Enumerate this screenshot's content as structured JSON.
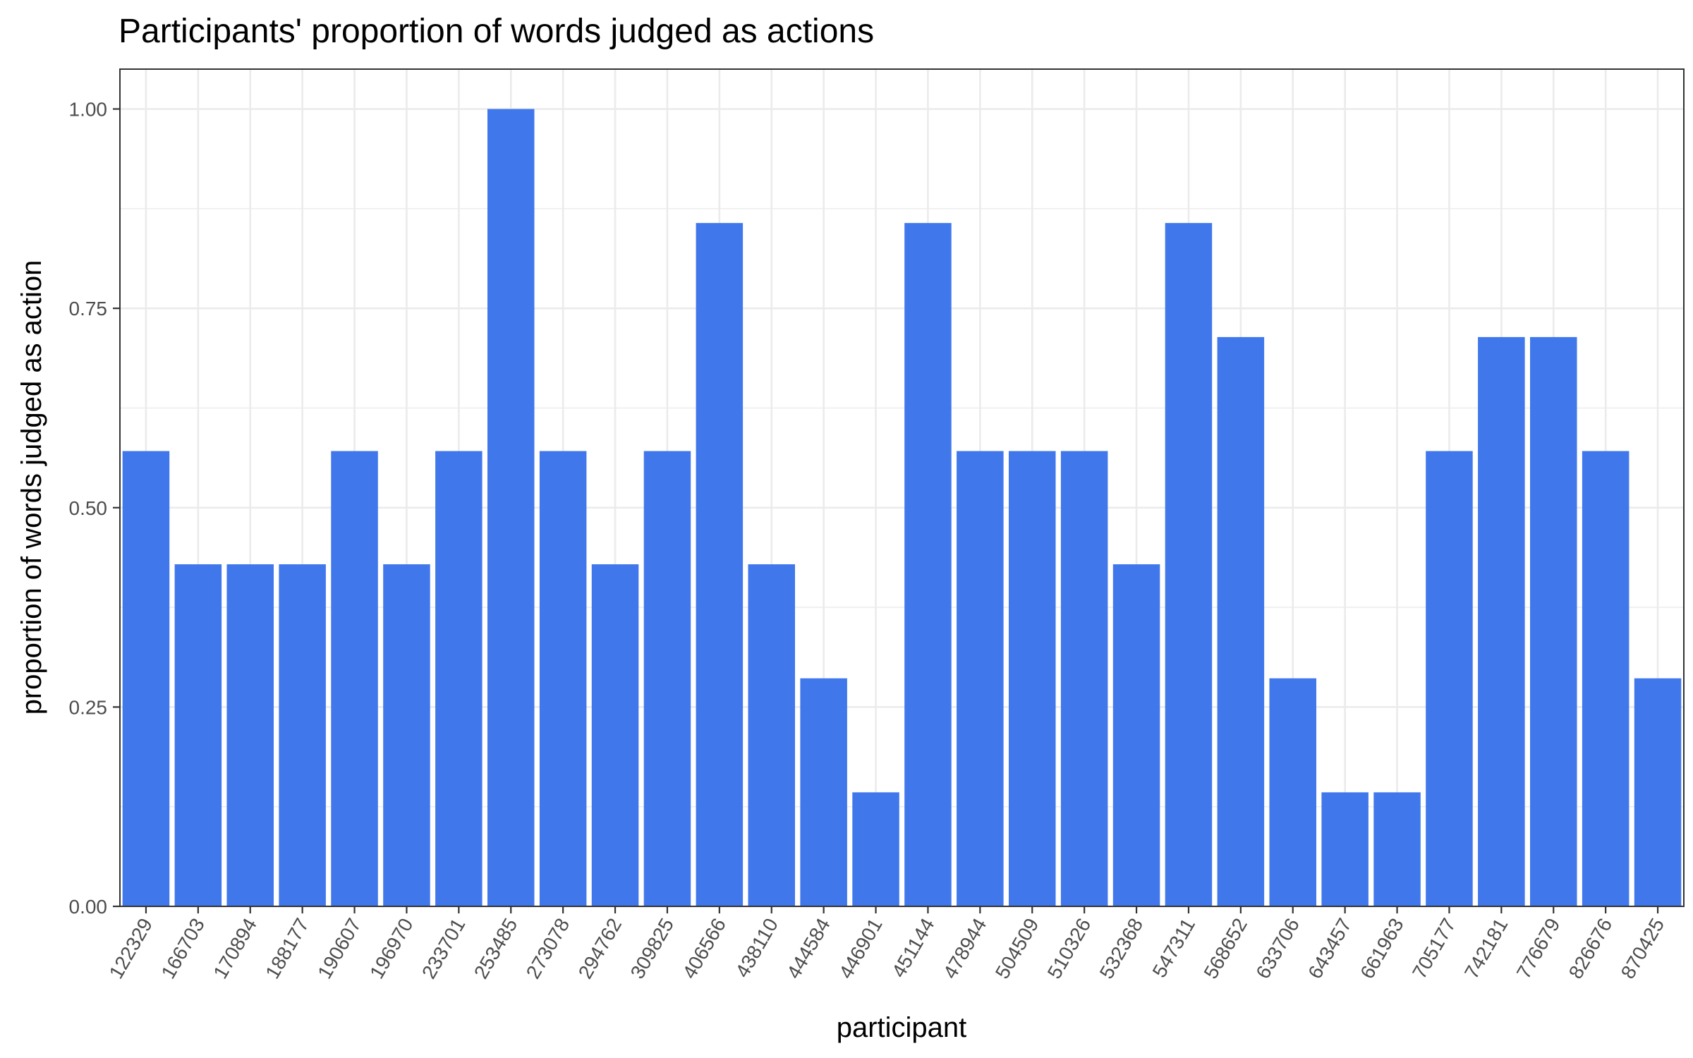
{
  "chart_data": {
    "type": "bar",
    "title": "Participants' proportion of words judged as actions",
    "xlabel": "participant",
    "ylabel": "proportion of words judged as action",
    "ylim": [
      0,
      1.05
    ],
    "yticks": [
      "0.00",
      "0.25",
      "0.50",
      "0.75",
      "1.00"
    ],
    "grid": true,
    "bar_color": "#4078EC",
    "categories": [
      "122329",
      "166703",
      "170894",
      "188177",
      "190607",
      "196970",
      "233701",
      "253485",
      "273078",
      "294762",
      "309825",
      "406566",
      "438110",
      "444584",
      "446901",
      "451144",
      "478944",
      "504509",
      "510326",
      "532368",
      "547311",
      "568652",
      "633706",
      "643457",
      "661963",
      "705177",
      "742181",
      "776679",
      "826676",
      "870425"
    ],
    "values": [
      0.571,
      0.429,
      0.429,
      0.429,
      0.571,
      0.429,
      0.571,
      1.0,
      0.571,
      0.429,
      0.571,
      0.857,
      0.429,
      0.286,
      0.143,
      0.857,
      0.571,
      0.571,
      0.571,
      0.429,
      0.857,
      0.714,
      0.286,
      0.143,
      0.143,
      0.571,
      0.714,
      0.714,
      0.571,
      0.286
    ]
  }
}
